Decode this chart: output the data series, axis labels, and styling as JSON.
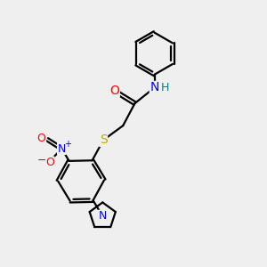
{
  "bg_color": "#efefef",
  "bond_color": "#000000",
  "atom_colors": {
    "O": "#ff0000",
    "N": "#0000ff",
    "S": "#bbaa00",
    "H": "#008080"
  },
  "figsize": [
    3.0,
    3.0
  ],
  "dpi": 100
}
